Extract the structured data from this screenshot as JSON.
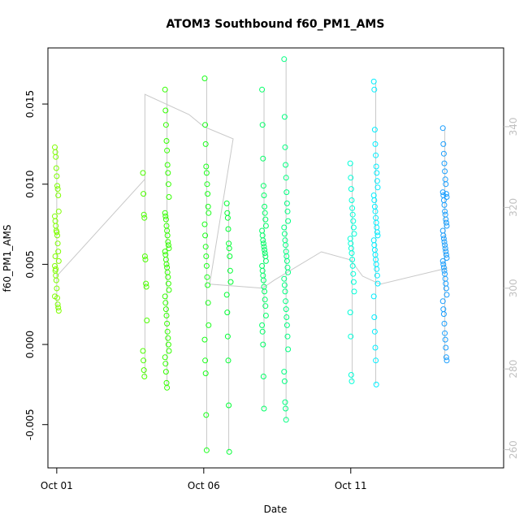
{
  "chart_data": {
    "type": "scatter",
    "title": "ATOM3 Southbound f60_PM1_AMS",
    "xlabel": "Date",
    "ylabel": "f60_PM1_AMS",
    "x_ticks": [
      {
        "label": "Oct 01",
        "day": 1
      },
      {
        "label": "Oct 06",
        "day": 6
      },
      {
        "label": "Oct 11",
        "day": 11
      }
    ],
    "xlim_days": [
      0.7,
      16.2
    ],
    "y_ticks": [
      "-0.005",
      "0.000",
      "0.005",
      "0.010",
      "0.015"
    ],
    "ylim": [
      -0.0077,
      0.0185
    ],
    "y2_ticks": [
      "260",
      "280",
      "300",
      "320",
      "340"
    ],
    "y2lim": [
      255.5,
      359.5
    ],
    "colors": {
      "axis": "#000000",
      "secondary_axis": "#c0c0c0",
      "overlay_line": "#c8c8c8"
    },
    "series": [
      {
        "day": 1.0,
        "color": "#7fff00",
        "values": [
          0.0123,
          0.012,
          0.0117,
          0.011,
          0.0105,
          0.0099,
          0.0097,
          0.0093,
          0.0083,
          0.008,
          0.0077,
          0.0074,
          0.0071,
          0.007,
          0.0068,
          0.0063,
          0.0058,
          0.0052,
          0.0049,
          0.0046,
          0.0043,
          0.004,
          0.0035,
          0.0029,
          0.0025,
          0.0023,
          0.0021,
          0.003,
          0.0055,
          0.0047
        ]
      },
      {
        "day": 4.0,
        "color": "#4cff00",
        "values": [
          0.0107,
          0.0094,
          0.0081,
          0.0079,
          0.0055,
          0.0053,
          0.0038,
          0.0036,
          0.0015,
          -0.0004,
          -0.001,
          -0.0016,
          -0.002
        ]
      },
      {
        "day": 4.75,
        "color": "#33ff00",
        "values": [
          0.0159,
          0.0146,
          0.0137,
          0.0127,
          0.0121,
          0.0112,
          0.0107,
          0.01,
          0.0092,
          0.0082,
          0.008,
          0.0078,
          0.0074,
          0.0071,
          0.0068,
          0.0064,
          0.0062,
          0.006,
          0.0058,
          0.0056,
          0.0053,
          0.005,
          0.0048,
          0.0045,
          0.0042,
          0.0038,
          0.0034,
          0.003,
          0.0026,
          0.0022,
          0.0018,
          0.0013,
          0.0008,
          0.0004,
          0.0,
          -0.0004,
          -0.0008,
          -0.0012,
          -0.0017,
          -0.0024,
          -0.0027
        ]
      },
      {
        "day": 6.1,
        "color": "#1aff1a",
        "values": [
          0.0166,
          0.0137,
          0.0125,
          0.0111,
          0.0107,
          0.01,
          0.0094,
          0.0086,
          0.0082,
          0.0075,
          0.0068,
          0.0061,
          0.0055,
          0.0049,
          0.0042,
          0.0037,
          0.0026,
          0.0012,
          0.0003,
          -0.001,
          -0.0018,
          -0.0044,
          -0.0066
        ]
      },
      {
        "day": 6.85,
        "color": "#00ff33",
        "values": [
          0.0088,
          0.0082,
          0.0079,
          0.0072,
          0.0063,
          0.006,
          0.0055,
          0.0046,
          0.0039,
          0.0031,
          0.002,
          0.0005,
          -0.001,
          -0.0038,
          -0.0067
        ]
      },
      {
        "day": 8.05,
        "color": "#00ff66",
        "values": [
          0.0159,
          0.0137,
          0.0116,
          0.0099,
          0.0093,
          0.0086,
          0.0082,
          0.0078,
          0.0074,
          0.0071,
          0.0068,
          0.0065,
          0.0063,
          0.0061,
          0.0059,
          0.0057,
          0.0055,
          0.0052,
          0.0049,
          0.0046,
          0.0043,
          0.004,
          0.0036,
          0.0033,
          0.0028,
          0.0024,
          0.0018,
          0.0012,
          0.0008,
          0.0,
          -0.002,
          -0.004
        ]
      },
      {
        "day": 8.8,
        "color": "#00ff80",
        "values": [
          0.0178,
          0.0142,
          0.0123,
          0.0112,
          0.0104,
          0.0095,
          0.0088,
          0.0083,
          0.0077,
          0.0073,
          0.0069,
          0.0065,
          0.0062,
          0.0058,
          0.0055,
          0.0052,
          0.0048,
          0.0045,
          0.0041,
          0.0037,
          0.0033,
          0.0027,
          0.0022,
          0.0017,
          0.0012,
          0.0005,
          -0.0003,
          -0.0017,
          -0.0023,
          -0.0036,
          -0.004,
          -0.0047
        ]
      },
      {
        "day": 11.05,
        "color": "#00ffd9",
        "values": [
          0.0113,
          0.0104,
          0.0097,
          0.009,
          0.0085,
          0.0081,
          0.0077,
          0.0073,
          0.0069,
          0.0066,
          0.0063,
          0.006,
          0.0057,
          0.0053,
          0.0049,
          0.0044,
          0.0039,
          0.0033,
          0.002,
          0.0005,
          -0.0019,
          -0.0023
        ]
      },
      {
        "day": 11.85,
        "color": "#00eeff",
        "values": [
          0.0164,
          0.0159,
          0.0134,
          0.0125,
          0.0118,
          0.0111,
          0.0107,
          0.0102,
          0.0098,
          0.0093,
          0.009,
          0.0086,
          0.0083,
          0.0079,
          0.0076,
          0.0073,
          0.007,
          0.0068,
          0.0065,
          0.0062,
          0.0059,
          0.0056,
          0.0053,
          0.005,
          0.0047,
          0.0043,
          0.0038,
          0.003,
          0.0017,
          0.0008,
          -0.0002,
          -0.001,
          -0.0025
        ]
      },
      {
        "day": 14.2,
        "color": "#1a9fff",
        "values": [
          0.0135,
          0.0125,
          0.0119,
          0.0113,
          0.0108,
          0.0103,
          0.01,
          0.0094,
          0.0092,
          0.0095,
          0.0093,
          0.009,
          0.0087,
          0.0083,
          0.0081,
          0.0078,
          0.0076,
          0.0074,
          0.0071,
          0.0068,
          0.0066,
          0.0064,
          0.0062,
          0.006,
          0.0058,
          0.0056,
          0.0054,
          0.0052,
          0.005,
          0.0048,
          0.0046,
          0.0044,
          0.0041,
          0.0038,
          0.0035,
          0.0031,
          0.0027,
          0.0022,
          0.0019,
          0.0013,
          0.0007,
          0.0003,
          -0.0002,
          -0.0008,
          -0.001
        ]
      }
    ],
    "overlay_path_y2": [
      {
        "day": 1.0,
        "y2": 303
      },
      {
        "day": 4.0,
        "y2": 327
      },
      {
        "day": 4.0,
        "y2": 348
      },
      {
        "day": 5.5,
        "y2": 343
      },
      {
        "day": 6.0,
        "y2": 340
      },
      {
        "day": 7.0,
        "y2": 337
      },
      {
        "day": 6.2,
        "y2": 301
      },
      {
        "day": 8.0,
        "y2": 300
      },
      {
        "day": 8.4,
        "y2": 302
      },
      {
        "day": 10.0,
        "y2": 309
      },
      {
        "day": 11.0,
        "y2": 307
      },
      {
        "day": 11.4,
        "y2": 303
      },
      {
        "day": 12.0,
        "y2": 301
      },
      {
        "day": 14.3,
        "y2": 305
      }
    ]
  }
}
